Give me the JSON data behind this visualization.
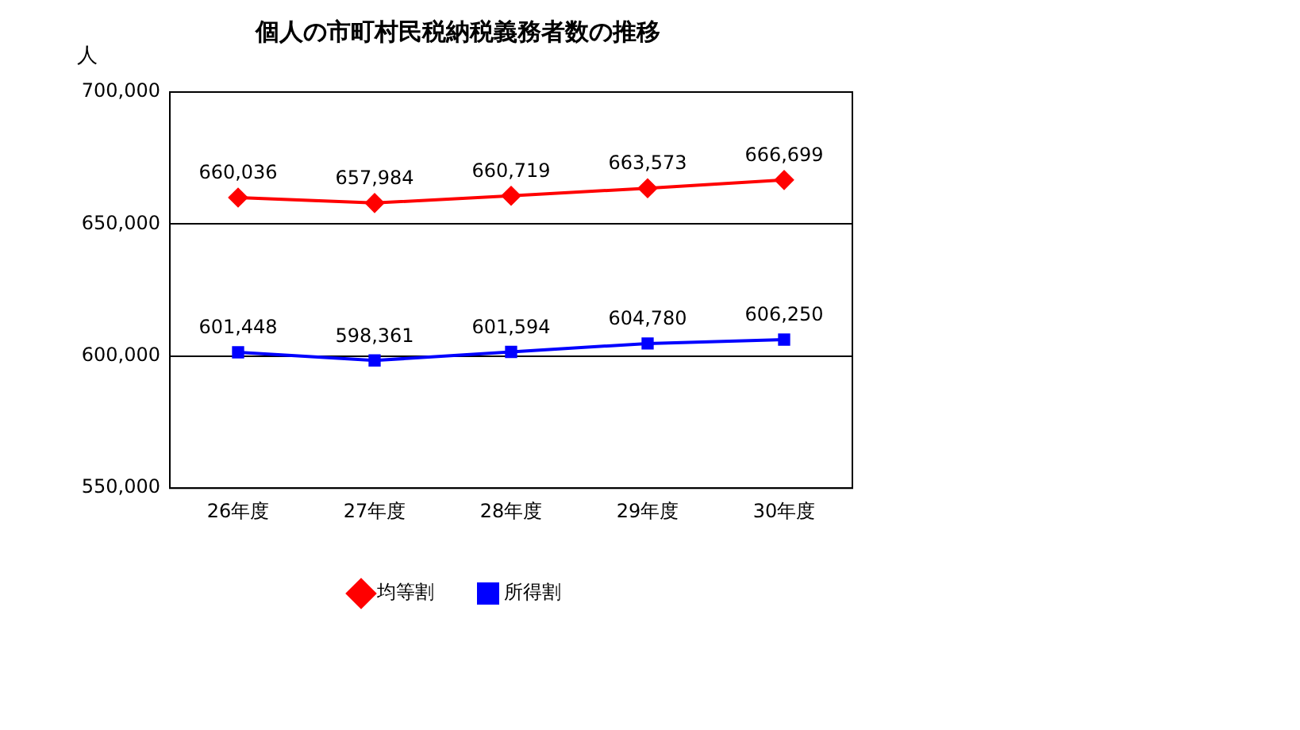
{
  "chart_data": {
    "type": "line",
    "title": "個人の市町村民税納税義務者数の推移",
    "ylabel": "人",
    "categories": [
      "26年度",
      "27年度",
      "28年度",
      "29年度",
      "30年度"
    ],
    "series": [
      {
        "name": "均等割",
        "color": "#ff0000",
        "marker": "diamond",
        "values": [
          660036,
          657984,
          660719,
          663573,
          666699
        ],
        "value_labels": [
          "660,036",
          "657,984",
          "660,719",
          "663,573",
          "666,699"
        ]
      },
      {
        "name": "所得割",
        "color": "#0000ff",
        "marker": "square",
        "values": [
          601448,
          598361,
          601594,
          604780,
          606250
        ],
        "value_labels": [
          "601,448",
          "598,361",
          "601,594",
          "604,780",
          "606,250"
        ]
      }
    ],
    "ylim": [
      550000,
      700000
    ],
    "yticks": [
      {
        "value": 550000,
        "label": "550,000"
      },
      {
        "value": 600000,
        "label": "600,000"
      },
      {
        "value": 650000,
        "label": "650,000"
      },
      {
        "value": 700000,
        "label": "700,000"
      }
    ],
    "grid": "y",
    "legend": "bottom",
    "line_style": "solid"
  }
}
